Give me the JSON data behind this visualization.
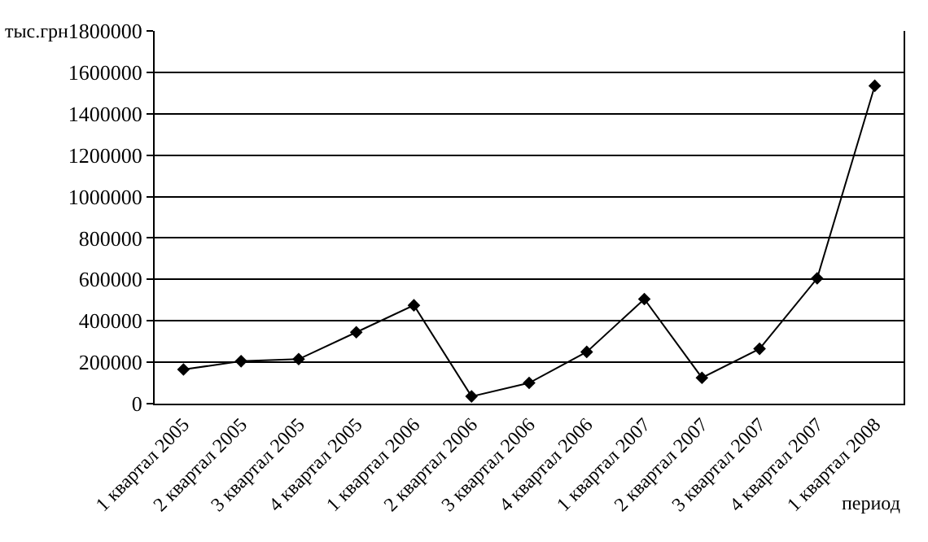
{
  "chart_data": {
    "type": "line",
    "ylabel": "тыс.грн",
    "xlabel": "период",
    "categories": [
      "1 квартал 2005",
      "2 квартал 2005",
      "3 квартал 2005",
      "4 квартал 2005",
      "1 квартал 2006",
      "2 квартал 2006",
      "3 квартал 2006",
      "4 квартал 2006",
      "1 квартал 2007",
      "2 квартал 2007",
      "3 квартал 2007",
      "4 квартал 2007",
      "1 квартал 2008"
    ],
    "series": [
      {
        "color": "#000000",
        "values": [
          165000,
          205000,
          215000,
          345000,
          475000,
          35000,
          100000,
          250000,
          505000,
          125000,
          265000,
          605000,
          1535000
        ]
      }
    ],
    "ylim": [
      0,
      1800000
    ],
    "yticks": [
      0,
      200000,
      400000,
      600000,
      800000,
      1000000,
      1200000,
      1400000,
      1600000,
      1800000
    ],
    "grid": "y",
    "marker": "diamond",
    "line_style": "solid",
    "legend": false
  }
}
